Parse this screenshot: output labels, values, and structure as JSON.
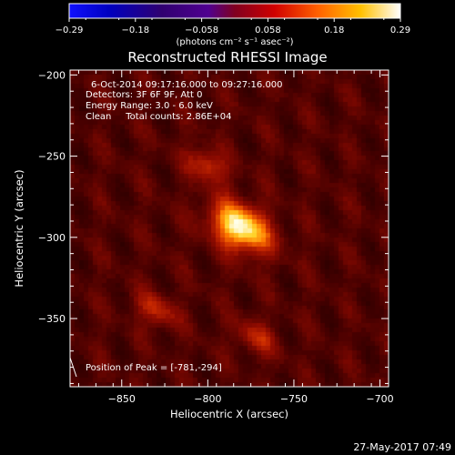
{
  "colorbar": {
    "ticks": [
      "-0.29",
      "-0.18",
      "-0.058",
      "0.058",
      "0.18",
      "0.29"
    ],
    "units": "(photons cm⁻² s⁻¹ asec⁻²)",
    "range": [
      -0.29,
      0.29
    ],
    "colormap": "RHESSI red-yellow with blue negatives"
  },
  "chart_data": {
    "type": "heatmap",
    "title": "Reconstructed RHESSI Image",
    "xlabel": "Heliocentric X (arcsec)",
    "ylabel": "Heliocentric Y (arcsec)",
    "xlim": [
      -880,
      -695
    ],
    "ylim": [
      -392,
      -197
    ],
    "x_ticks": [
      -850,
      -800,
      -750,
      -700
    ],
    "y_ticks": [
      -200,
      -250,
      -300,
      -350
    ],
    "x_tick_labels": [
      "−850",
      "−800",
      "−750",
      "−700"
    ],
    "y_tick_labels": [
      "−200",
      "−250",
      "−300",
      "−350"
    ],
    "peak": [
      -781,
      -294
    ],
    "sources": [
      {
        "x": -781,
        "y": -294,
        "intensity": 1.0
      },
      {
        "x": -800,
        "y": -256,
        "intensity": 0.45
      },
      {
        "x": -830,
        "y": -345,
        "intensity": 0.4
      },
      {
        "x": -772,
        "y": -362,
        "intensity": 0.35
      }
    ],
    "annotations": [
      "6-Oct-2014 09:17:16.000 to 09:27:16.000",
      "Detectors: 3F 6F 9F, Att 0",
      "Energy Range: 3.0 - 6.0 keV",
      "Clean     Total counts: 2.86E+04"
    ],
    "peak_label": "Position of Peak = [-781,-294]"
  },
  "footer": {
    "date": "27-May-2017 07:49"
  }
}
